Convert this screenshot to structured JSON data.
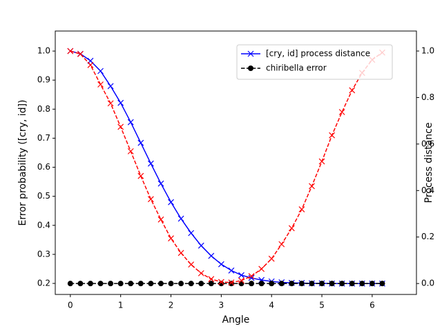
{
  "chart_data": {
    "type": "line",
    "xlabel": "Angle",
    "ylabel": "Error probability ([cry, id])",
    "y2label": "Process distance",
    "ylabel_color": "#ff0000",
    "y2label_color": "#0000ff",
    "x": [
      0,
      0.2,
      0.4,
      0.6,
      0.8,
      1.0,
      1.2,
      1.4,
      1.6,
      1.8,
      2.0,
      2.2,
      2.4,
      2.6,
      2.8,
      3.0,
      3.2,
      3.4,
      3.6,
      3.8,
      4.0,
      4.2,
      4.4,
      4.6,
      4.8,
      5.0,
      5.2,
      5.4,
      5.6,
      5.8,
      6.0,
      6.2
    ],
    "series": [
      {
        "name": "[cry, id] process distance",
        "color": "#0000ff",
        "dash": false,
        "marker": "x",
        "axis": "y2",
        "in_legend": true,
        "values": [
          1.0,
          0.988,
          0.958,
          0.914,
          0.849,
          0.777,
          0.694,
          0.605,
          0.516,
          0.43,
          0.35,
          0.279,
          0.217,
          0.163,
          0.119,
          0.083,
          0.056,
          0.036,
          0.024,
          0.015,
          0.009,
          0.005,
          0.003,
          0.002,
          0.001,
          0.001,
          0.0,
          0.0,
          0.0,
          0.0,
          0.0,
          0.0
        ]
      },
      {
        "name": "chiribella error",
        "color": "#000000",
        "dash": true,
        "marker": "o",
        "axis": "y2",
        "in_legend": true,
        "values": [
          0,
          0,
          0,
          0,
          0,
          0,
          0,
          0,
          0,
          0,
          0,
          0,
          0,
          0,
          0,
          0,
          0,
          0,
          0,
          0,
          0,
          0,
          0,
          0,
          0,
          0,
          0,
          0,
          0,
          0,
          0,
          0
        ]
      },
      {
        "color": "#ff0000",
        "dash": true,
        "marker": "x",
        "axis": "y",
        "in_legend": false,
        "values": [
          1.0,
          0.99,
          0.952,
          0.885,
          0.82,
          0.739,
          0.655,
          0.57,
          0.49,
          0.42,
          0.355,
          0.305,
          0.265,
          0.235,
          0.215,
          0.205,
          0.203,
          0.21,
          0.225,
          0.25,
          0.285,
          0.335,
          0.39,
          0.455,
          0.535,
          0.62,
          0.71,
          0.79,
          0.865,
          0.925,
          0.97,
          0.995
        ]
      }
    ],
    "xlim": [
      -0.3,
      6.88
    ],
    "xticks": [
      0,
      1,
      2,
      3,
      4,
      5,
      6
    ],
    "ylim": [
      0.162,
      1.069
    ],
    "yticks": [
      0.2,
      0.3,
      0.4,
      0.5,
      0.6,
      0.7,
      0.8,
      0.9,
      {
        "value": 1,
        "label": "1.0"
      }
    ],
    "y2lim": [
      -0.047,
      1.086
    ],
    "y2ticks": [
      {
        "value": 0,
        "label": "0.0"
      },
      0.2,
      0.4,
      0.6,
      0.8,
      {
        "value": 1,
        "label": "1.0"
      }
    ],
    "legend": "upper right"
  }
}
